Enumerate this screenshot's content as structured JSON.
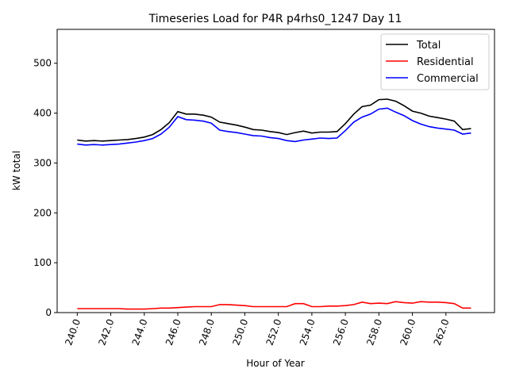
{
  "chart_data": {
    "type": "line",
    "title": "Timeseries Load for P4R p4rhs0_1247  Day 11",
    "xlabel": "Hour of Year",
    "ylabel": "kW total",
    "xlim": [
      238.8,
      264.9
    ],
    "ylim": [
      0,
      568
    ],
    "xticks": [
      "240.0",
      "242.0",
      "244.0",
      "246.0",
      "248.0",
      "250.0",
      "252.0",
      "254.0",
      "256.0",
      "258.0",
      "260.0",
      "262.0"
    ],
    "xtick_values": [
      240,
      242,
      244,
      246,
      248,
      250,
      252,
      254,
      256,
      258,
      260,
      262
    ],
    "yticks": [
      "0",
      "100",
      "200",
      "300",
      "400",
      "500"
    ],
    "ytick_values": [
      0,
      100,
      200,
      300,
      400,
      500
    ],
    "legend_position": "top-right",
    "x_start": 240,
    "x_step": 0.5,
    "series": [
      {
        "name": "Total",
        "color": "#000000",
        "values": [
          346,
          344,
          345,
          344,
          345,
          346,
          347,
          349,
          352,
          357,
          367,
          381,
          403,
          398,
          398,
          396,
          392,
          382,
          379,
          376,
          372,
          367,
          366,
          363,
          361,
          357,
          361,
          364,
          360,
          362,
          362,
          363,
          379,
          398,
          413,
          416,
          427,
          428,
          424,
          415,
          404,
          400,
          394,
          391,
          388,
          384,
          367,
          369
        ]
      },
      {
        "name": "Residential",
        "color": "#ff0000",
        "values": [
          8,
          8,
          8,
          8,
          8,
          8,
          7,
          7,
          7,
          8,
          9,
          9,
          10,
          11,
          12,
          12,
          12,
          16,
          16,
          15,
          14,
          12,
          12,
          12,
          12,
          12,
          18,
          18,
          12,
          12,
          13,
          13,
          14,
          16,
          21,
          18,
          19,
          18,
          22,
          20,
          19,
          22,
          21,
          21,
          20,
          18,
          9,
          9
        ]
      },
      {
        "name": "Commercial",
        "color": "#0000ff",
        "values": [
          338,
          336,
          337,
          336,
          337,
          338,
          340,
          342,
          345,
          349,
          358,
          372,
          393,
          387,
          386,
          384,
          380,
          366,
          363,
          361,
          358,
          355,
          354,
          351,
          349,
          345,
          343,
          346,
          348,
          350,
          349,
          350,
          365,
          382,
          392,
          398,
          408,
          410,
          402,
          395,
          385,
          378,
          373,
          370,
          368,
          366,
          358,
          360
        ]
      }
    ]
  }
}
